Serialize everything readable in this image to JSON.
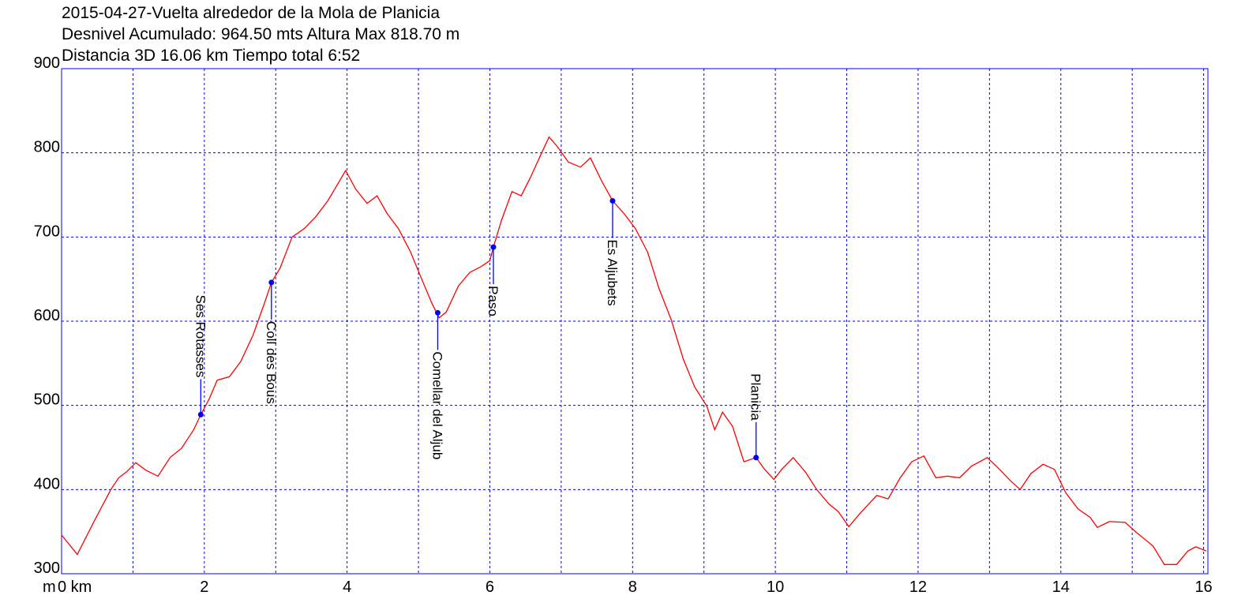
{
  "chart_data": {
    "type": "line",
    "title": [
      "2015-04-27-Vuelta alrededor de la Mola de Planicia",
      "Desnivel Acumulado: 964.50 mts  Altura Max 818.70 m",
      "Distancia 3D 16.06 km  Tiempo total 6:52"
    ],
    "y_unit": "m",
    "x": [
      0,
      0.22,
      0.46,
      0.69,
      0.8,
      0.91,
      1.04,
      1.18,
      1.35,
      1.52,
      1.68,
      1.85,
      1.95,
      2.07,
      2.18,
      2.35,
      2.51,
      2.68,
      2.84,
      2.94,
      3.06,
      3.23,
      3.4,
      3.56,
      3.73,
      3.89,
      3.98,
      4.12,
      4.28,
      4.42,
      4.56,
      4.72,
      4.89,
      5.05,
      5.19,
      5.29,
      5.39,
      5.56,
      5.72,
      5.88,
      6.0,
      6.05,
      6.16,
      6.31,
      6.44,
      6.57,
      6.72,
      6.83,
      6.94,
      7.1,
      7.27,
      7.41,
      7.57,
      7.72,
      7.88,
      8.04,
      8.21,
      8.37,
      8.54,
      8.71,
      8.87,
      9.04,
      9.15,
      9.26,
      9.4,
      9.56,
      9.73,
      9.85,
      9.98,
      10.09,
      10.25,
      10.42,
      10.58,
      10.75,
      10.88,
      11.03,
      11.19,
      11.42,
      11.58,
      11.75,
      11.91,
      12.08,
      12.25,
      12.41,
      12.58,
      12.75,
      12.97,
      13.14,
      13.3,
      13.43,
      13.58,
      13.75,
      13.91,
      14.07,
      14.24,
      14.41,
      14.51,
      14.68,
      14.9,
      15.06,
      15.29,
      15.45,
      15.62,
      15.78,
      15.89,
      16.04
    ],
    "values": [
      346,
      323,
      363,
      400,
      414,
      421,
      432,
      423,
      416,
      438,
      449,
      471,
      489,
      508,
      530,
      534,
      552,
      583,
      621,
      646,
      663,
      700,
      710,
      724,
      743,
      766,
      779,
      757,
      740,
      749,
      728,
      710,
      682,
      649,
      621,
      604,
      611,
      642,
      658,
      665,
      672,
      688,
      719,
      754,
      749,
      771,
      799,
      818.7,
      808,
      789,
      783,
      794,
      766,
      743,
      728,
      710,
      682,
      639,
      602,
      555,
      522,
      499,
      471,
      492,
      475,
      433,
      438,
      424,
      412,
      424,
      438,
      421,
      400,
      383,
      374,
      356,
      372,
      393,
      389,
      414,
      433,
      440,
      414,
      416,
      414,
      428,
      438,
      424,
      410,
      400,
      419,
      430,
      424,
      396,
      377,
      367,
      355,
      362,
      361,
      349,
      333,
      311,
      311,
      327,
      332,
      327
    ],
    "color": "#ff0000",
    "waypoints": [
      {
        "name": "Ses Rotasses",
        "x": 1.95,
        "y": 489,
        "label_position": "above"
      },
      {
        "name": "Coll des Bous",
        "x": 2.94,
        "y": 646,
        "label_position": "below"
      },
      {
        "name": "Comellar del Aljub",
        "x": 5.27,
        "y": 610,
        "label_position": "below"
      },
      {
        "name": "Paso",
        "x": 6.05,
        "y": 688,
        "label_position": "below"
      },
      {
        "name": "Es Aljubets",
        "x": 7.72,
        "y": 743,
        "label_position": "below"
      },
      {
        "name": "Planicia",
        "x": 9.73,
        "y": 438,
        "label_position": "above"
      }
    ],
    "waypoint_color": "#0000ff",
    "xlim": [
      0,
      16.06
    ],
    "xticks": [
      {
        "value": 0,
        "label": "0 km"
      },
      2,
      4,
      6,
      8,
      10,
      12,
      14,
      16
    ],
    "xgrid": [
      1,
      2,
      3,
      4,
      5,
      6,
      7,
      8,
      9,
      10,
      11,
      12,
      13,
      14,
      15,
      16
    ],
    "ylim": [
      300,
      900
    ],
    "yticks": [
      300,
      400,
      500,
      600,
      700,
      800,
      900
    ],
    "grid": true,
    "grid_color": "#0000ff"
  }
}
